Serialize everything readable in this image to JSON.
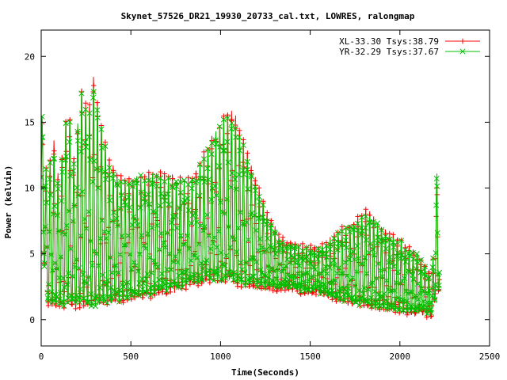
{
  "chart_data": {
    "type": "line",
    "title": "Skynet_57526_DR21_19930_20733_cal.txt, LOWRES, ralongmap",
    "xlabel": "Time(Seconds)",
    "ylabel": "Power (kelvin)",
    "xlim": [
      0,
      2500
    ],
    "ylim": [
      -2,
      22
    ],
    "xticks": [
      0,
      500,
      1000,
      1500,
      2000,
      2500
    ],
    "yticks": [
      0,
      5,
      10,
      15,
      20
    ],
    "grid": false,
    "legend_position": "top-right",
    "series": [
      {
        "name": "XL-33.30 Tsys:38.79",
        "color": "#ff0000",
        "marker": "plus",
        "envelope": {
          "x": [
            0,
            30,
            70,
            100,
            150,
            180,
            230,
            260,
            290,
            330,
            370,
            420,
            480,
            560,
            650,
            720,
            800,
            860,
            900,
            940,
            980,
            1020,
            1050,
            1080,
            1110,
            1150,
            1200,
            1260,
            1320,
            1360,
            1400,
            1450,
            1500,
            1550,
            1600,
            1650,
            1700,
            1750,
            1780,
            1820,
            1860,
            1900,
            1950,
            2000,
            2050,
            2100,
            2150,
            2180,
            2200,
            2220
          ],
          "high": [
            15.6,
            11.0,
            13.5,
            10.5,
            16.8,
            12.0,
            18.2,
            15.0,
            18.5,
            15.5,
            12.5,
            11.0,
            10.8,
            11.0,
            11.2,
            10.8,
            10.5,
            11.0,
            12.5,
            13.5,
            14.5,
            15.5,
            16.0,
            15.5,
            14.5,
            12.5,
            10.5,
            8.0,
            6.5,
            5.8,
            5.8,
            5.5,
            5.5,
            5.5,
            6.0,
            6.5,
            7.0,
            7.5,
            8.0,
            8.2,
            7.5,
            7.0,
            6.5,
            6.0,
            5.5,
            5.0,
            4.0,
            3.0,
            10.0,
            10.8
          ],
          "low": [
            8.5,
            1.2,
            1.2,
            1.0,
            1.2,
            1.0,
            1.2,
            1.0,
            1.0,
            1.2,
            1.3,
            1.4,
            1.6,
            1.8,
            2.0,
            2.2,
            2.5,
            2.8,
            3.0,
            3.0,
            3.0,
            3.0,
            3.0,
            2.8,
            2.7,
            2.6,
            2.5,
            2.4,
            2.4,
            2.4,
            2.3,
            2.2,
            2.1,
            2.0,
            1.8,
            1.6,
            1.4,
            1.2,
            1.1,
            1.0,
            1.0,
            0.9,
            0.8,
            0.7,
            0.6,
            0.5,
            0.4,
            0.3,
            2.0,
            2.5
          ]
        }
      },
      {
        "name": "YR-32.29 Tsys:37.67",
        "color": "#00c000",
        "marker": "cross",
        "envelope": {
          "x": [
            0,
            30,
            70,
            100,
            150,
            180,
            230,
            260,
            290,
            330,
            370,
            420,
            480,
            560,
            650,
            720,
            800,
            860,
            900,
            940,
            980,
            1020,
            1050,
            1080,
            1110,
            1150,
            1200,
            1260,
            1320,
            1360,
            1400,
            1450,
            1500,
            1550,
            1600,
            1650,
            1700,
            1750,
            1780,
            1820,
            1860,
            1900,
            1950,
            2000,
            2050,
            2100,
            2150,
            2180,
            2200,
            2220
          ],
          "high": [
            16.5,
            10.8,
            13.0,
            10.2,
            16.5,
            11.8,
            17.8,
            14.8,
            18.0,
            15.2,
            12.2,
            10.8,
            10.6,
            10.8,
            11.0,
            10.6,
            10.3,
            10.8,
            12.2,
            13.2,
            14.2,
            15.0,
            15.2,
            15.0,
            14.0,
            12.2,
            10.2,
            7.8,
            6.3,
            5.6,
            5.6,
            5.3,
            5.3,
            5.3,
            5.8,
            6.3,
            6.8,
            7.3,
            7.8,
            8.0,
            7.3,
            6.8,
            6.3,
            5.8,
            5.3,
            4.8,
            3.8,
            2.8,
            11.0,
            11.2
          ],
          "low": [
            8.0,
            1.4,
            1.4,
            1.2,
            1.4,
            1.2,
            1.4,
            1.2,
            1.2,
            1.4,
            1.5,
            1.6,
            1.8,
            2.0,
            2.2,
            2.4,
            2.7,
            3.0,
            3.2,
            3.2,
            3.2,
            3.2,
            3.2,
            3.0,
            2.9,
            2.8,
            2.7,
            2.6,
            2.6,
            2.6,
            2.5,
            2.4,
            2.3,
            2.2,
            2.0,
            1.8,
            1.6,
            1.4,
            1.3,
            1.2,
            1.2,
            1.1,
            1.0,
            0.9,
            0.8,
            0.7,
            0.6,
            0.5,
            2.2,
            2.7
          ]
        }
      }
    ]
  }
}
